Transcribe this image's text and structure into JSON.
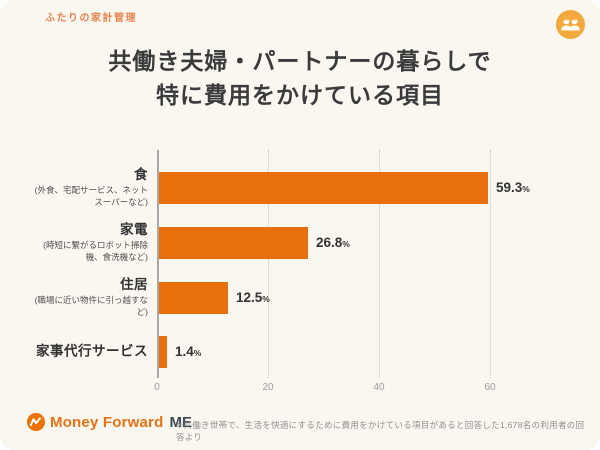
{
  "page": {
    "tag": "ふたりの家計管理",
    "title_line1": "共働き夫婦・パートナーの暮らしで",
    "title_line2": "特に費用をかけている項目"
  },
  "chart_data": {
    "type": "bar",
    "orientation": "horizontal",
    "title": "共働き夫婦・パートナーの暮らしで特に費用をかけている項目",
    "categories": [
      {
        "label": "食",
        "sublabel": "(外食、宅配サービス、ネットスーパーなど)"
      },
      {
        "label": "家電",
        "sublabel": "(時短に繋がるロボット掃除機、食洗機など)"
      },
      {
        "label": "住居",
        "sublabel": "(職場に近い物件に引っ越すなど)"
      },
      {
        "label": "家事代行サービス",
        "sublabel": ""
      }
    ],
    "values": [
      59.3,
      26.8,
      12.5,
      1.4
    ],
    "value_labels": [
      "59.3",
      "26.8",
      "12.5",
      "1.4"
    ],
    "unit": "%",
    "xticks": [
      0,
      20,
      40,
      60
    ],
    "xlim": [
      0,
      60
    ],
    "grid": "vertical-dotted",
    "legend": "none"
  },
  "footer": {
    "logo_text": "Money Forward",
    "logo_suffix": "ME",
    "note": "※共働き世帯で、生活を快適にするために費用をかけている項目があると回答した1,678名の利用者の回答より"
  },
  "colors": {
    "bar": "#e8700c",
    "tag": "#e8834b",
    "badge": "#f4a93c",
    "title_text": "#3b3b3b",
    "background": "#faf7f1",
    "axis": "#a8a8a8"
  }
}
